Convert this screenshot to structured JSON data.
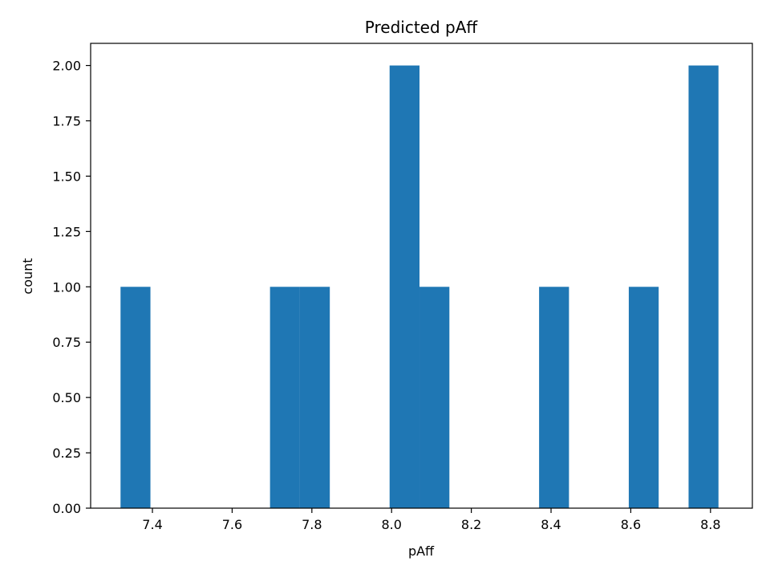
{
  "chart_data": {
    "type": "bar",
    "title": "Predicted pAff",
    "xlabel": "pAff",
    "ylabel": "count",
    "bar_color": "#1f77b4",
    "xlim": [
      7.245,
      8.905
    ],
    "ylim": [
      0,
      2.1
    ],
    "xticks": [
      "7.4",
      "7.6",
      "7.8",
      "8.0",
      "8.2",
      "8.4",
      "8.6",
      "8.8"
    ],
    "yticks": [
      "0.00",
      "0.25",
      "0.50",
      "0.75",
      "1.00",
      "1.25",
      "1.50",
      "1.75",
      "2.00"
    ],
    "grid": false,
    "legend": "none",
    "bins": [
      {
        "x0": 7.32,
        "x1": 7.395,
        "count": 1
      },
      {
        "x0": 7.695,
        "x1": 7.77,
        "count": 1
      },
      {
        "x0": 7.77,
        "x1": 7.845,
        "count": 1
      },
      {
        "x0": 7.995,
        "x1": 8.07,
        "count": 2
      },
      {
        "x0": 8.07,
        "x1": 8.145,
        "count": 1
      },
      {
        "x0": 8.37,
        "x1": 8.445,
        "count": 1
      },
      {
        "x0": 8.595,
        "x1": 8.67,
        "count": 1
      },
      {
        "x0": 8.745,
        "x1": 8.82,
        "count": 2
      }
    ]
  }
}
